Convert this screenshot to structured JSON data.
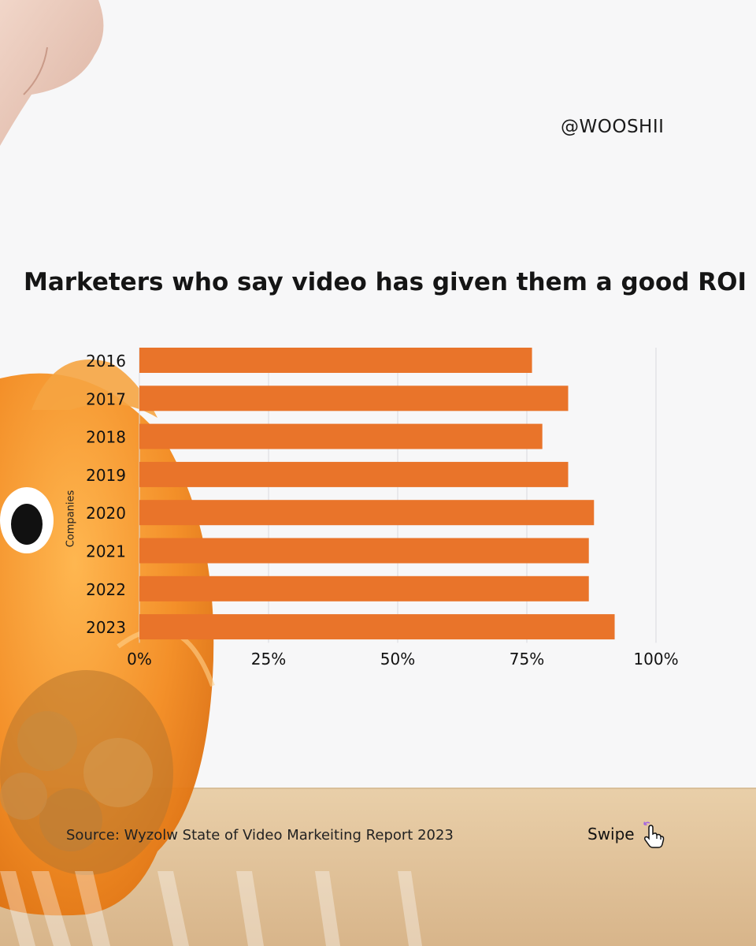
{
  "handle": "@WOOSHII",
  "chart_data": {
    "type": "bar",
    "orientation": "horizontal",
    "title": "Marketers who say video has given them a good ROI",
    "ylabel": "Companies",
    "xlabel": "",
    "categories": [
      "2016",
      "2017",
      "2018",
      "2019",
      "2020",
      "2021",
      "2022",
      "2023"
    ],
    "values": [
      76,
      83,
      78,
      83,
      88,
      87,
      87,
      92
    ],
    "xlim": [
      0,
      100
    ],
    "x_ticks": [
      "0%",
      "25%",
      "50%",
      "75%",
      "100%"
    ],
    "grid": true,
    "bar_color": "#e9742a"
  },
  "source": "Source: Wyzolw State of Video Markeiting Report 2023",
  "swipe": {
    "label": "Swipe",
    "icon": "hand-pointer-icon"
  },
  "colors": {
    "accent": "#e9742a",
    "piggy": "#f08a1c",
    "table": "#e2c7a1"
  }
}
